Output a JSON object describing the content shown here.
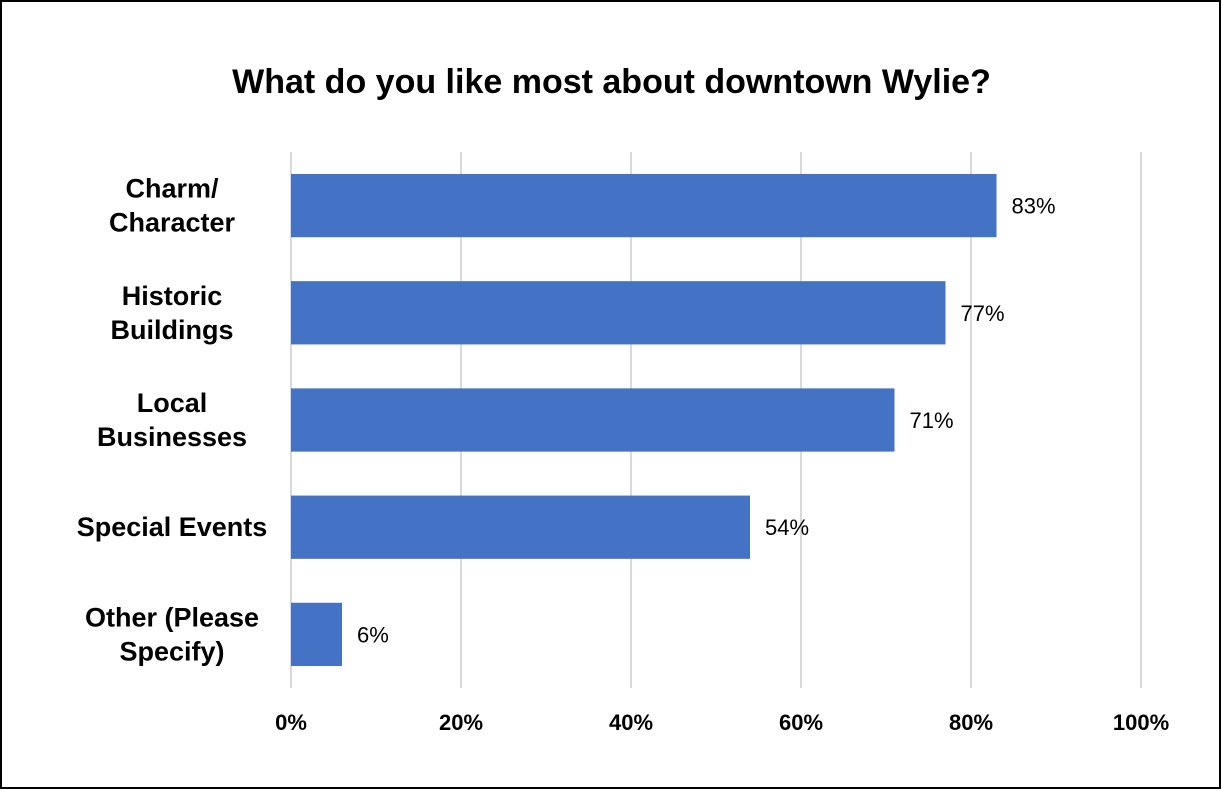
{
  "chart_data": {
    "type": "bar",
    "orientation": "horizontal",
    "title": "What do you like most about downtown Wylie?",
    "categories": [
      [
        "Charm/",
        "Character"
      ],
      [
        "Historic",
        "Buildings"
      ],
      [
        "Local",
        "Businesses"
      ],
      [
        "Special Events"
      ],
      [
        "Other (Please",
        "Specify)"
      ]
    ],
    "values": [
      83,
      77,
      71,
      54,
      6
    ],
    "data_labels": [
      "83%",
      "77%",
      "71%",
      "54%",
      "6%"
    ],
    "xlim": [
      0,
      100
    ],
    "x_ticks": [
      0,
      20,
      40,
      60,
      80,
      100
    ],
    "x_tick_labels": [
      "0%",
      "20%",
      "40%",
      "60%",
      "80%",
      "100%"
    ],
    "xlabel": "",
    "ylabel": "",
    "grid": "vertical",
    "legend": "none",
    "colors": {
      "bar": "#4472C4",
      "grid": "#D9D9D9",
      "border": "#000000"
    }
  }
}
